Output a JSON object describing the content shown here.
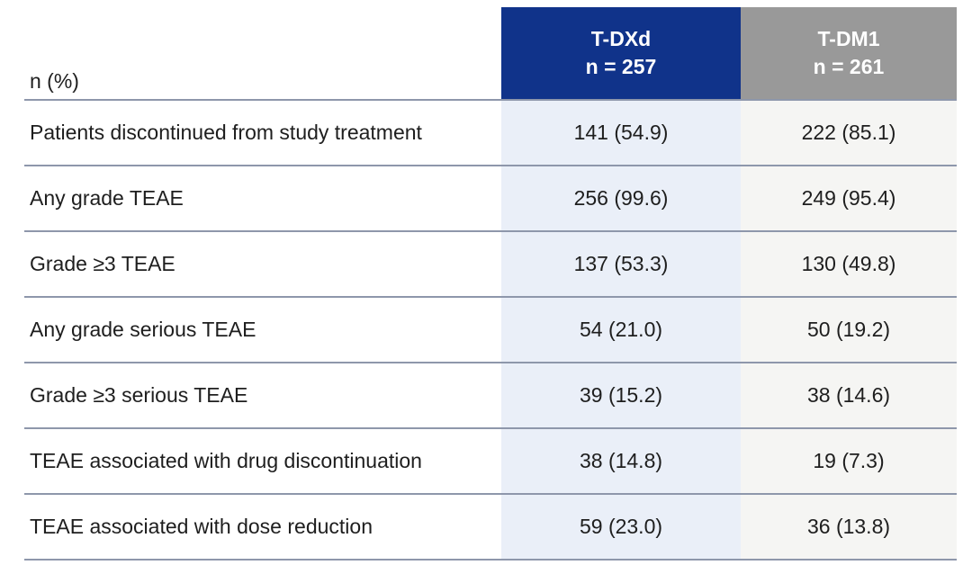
{
  "colors": {
    "tdxd_header_bg": "#10338A",
    "tdm1_header_bg": "#999999",
    "tdxd_column_bg": "#EAEFF8",
    "tdm1_column_bg": "#F5F5F3",
    "divider_line": "#8E97AB",
    "header_text": "#FFFFFF",
    "body_text": "#1E1E1E"
  },
  "table": {
    "corner_label": "n (%)",
    "columns": [
      {
        "id": "tdxd",
        "drug": "T-DXd",
        "n": "n = 257"
      },
      {
        "id": "tdm1",
        "drug": "T-DM1",
        "n": "n = 261"
      }
    ],
    "rows": [
      {
        "label": "Patients discontinued from study treatment",
        "tdxd": "141 (54.9)",
        "tdm1": "222 (85.1)"
      },
      {
        "label": "Any grade TEAE",
        "tdxd": "256 (99.6)",
        "tdm1": "249 (95.4)"
      },
      {
        "label": "Grade ≥3 TEAE",
        "tdxd": "137 (53.3)",
        "tdm1": "130 (49.8)"
      },
      {
        "label": "Any grade serious TEAE",
        "tdxd": "54 (21.0)",
        "tdm1": "50 (19.2)"
      },
      {
        "label": "Grade ≥3 serious TEAE",
        "tdxd": "39 (15.2)",
        "tdm1": "38 (14.6)"
      },
      {
        "label": "TEAE associated with drug discontinuation",
        "tdxd": "38 (14.8)",
        "tdm1": "19 (7.3)"
      },
      {
        "label": "TEAE associated with dose reduction",
        "tdxd": "59 (23.0)",
        "tdm1": "36 (13.8)"
      }
    ]
  },
  "chart_data": {
    "type": "table",
    "columns": [
      "n (%)",
      "T-DXd n = 257",
      "T-DM1 n = 261"
    ],
    "rows": [
      [
        "Patients discontinued from study treatment",
        "141 (54.9)",
        "222 (85.1)"
      ],
      [
        "Any grade TEAE",
        "256 (99.6)",
        "249 (95.4)"
      ],
      [
        "Grade ≥3 TEAE",
        "137 (53.3)",
        "130 (49.8)"
      ],
      [
        "Any grade serious TEAE",
        "54 (21.0)",
        "50 (19.2)"
      ],
      [
        "Grade ≥3 serious TEAE",
        "39 (15.2)",
        "38 (14.6)"
      ],
      [
        "TEAE associated with drug discontinuation",
        "38 (14.8)",
        "19 (7.3)"
      ],
      [
        "TEAE associated with dose reduction",
        "59 (23.0)",
        "36 (13.8)"
      ]
    ]
  }
}
